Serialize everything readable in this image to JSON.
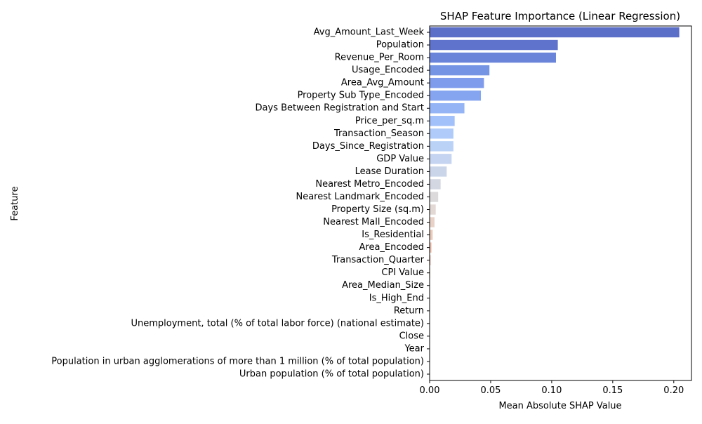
{
  "chart_data": {
    "type": "bar",
    "orientation": "horizontal",
    "title": "SHAP Feature Importance (Linear Regression)",
    "xlabel": "Mean Absolute SHAP Value",
    "ylabel": "Feature",
    "xlim": [
      0,
      0.2145
    ],
    "xticks": [
      0.0,
      0.05,
      0.1,
      0.15,
      0.2
    ],
    "xtick_labels": [
      "0.00",
      "0.05",
      "0.10",
      "0.15",
      "0.20"
    ],
    "grid": false,
    "palette": "coolwarm",
    "categories": [
      "Avg_Amount_Last_Week",
      "Population",
      "Revenue_Per_Room",
      "Usage_Encoded",
      "Area_Avg_Amount",
      "Property Sub Type_Encoded",
      "Days Between Registration and Start",
      "Price_per_sq.m",
      "Transaction_Season",
      "Days_Since_Registration",
      "GDP Value",
      "Lease Duration",
      "Nearest Metro_Encoded",
      "Nearest Landmark_Encoded",
      "Property Size (sq.m)",
      "Nearest Mall_Encoded",
      "Is_Residential",
      "Area_Encoded",
      "Transaction_Quarter",
      "CPI Value",
      "Area_Median_Size",
      "Is_High_End",
      "Return",
      "Unemployment, total (% of total labor force) (national estimate)",
      "Close",
      "Year",
      "Population in urban agglomerations of more than 1 million (% of total population)",
      "Urban population (% of total population)"
    ],
    "values": [
      0.2045,
      0.105,
      0.1035,
      0.049,
      0.0445,
      0.042,
      0.0285,
      0.0205,
      0.0195,
      0.0195,
      0.018,
      0.014,
      0.009,
      0.007,
      0.005,
      0.004,
      0.0025,
      0.0015,
      0.0008,
      0.0004,
      0.0002,
      0.0001,
      0.0001,
      0.0001,
      0.0001,
      5e-05,
      5e-05,
      5e-05
    ],
    "colors": [
      "#5b6ec8",
      "#5f73cc",
      "#6a84da",
      "#7595e4",
      "#7f9cec",
      "#86a5f0",
      "#94b4f5",
      "#a2c0f9",
      "#b0cbfa",
      "#bbd2f7",
      "#c4d4f1",
      "#cbd5ea",
      "#d3d7e2",
      "#dcdadb",
      "#e2d9d5",
      "#e8d2c8",
      "#ebcbbc",
      "#eebfad",
      "#f0b79f",
      "#f2ad92",
      "#f2a285",
      "#f19679",
      "#ee8b6d",
      "#e97d60",
      "#e36e55",
      "#dc5f4b",
      "#d24f40",
      "#c63c35"
    ]
  }
}
